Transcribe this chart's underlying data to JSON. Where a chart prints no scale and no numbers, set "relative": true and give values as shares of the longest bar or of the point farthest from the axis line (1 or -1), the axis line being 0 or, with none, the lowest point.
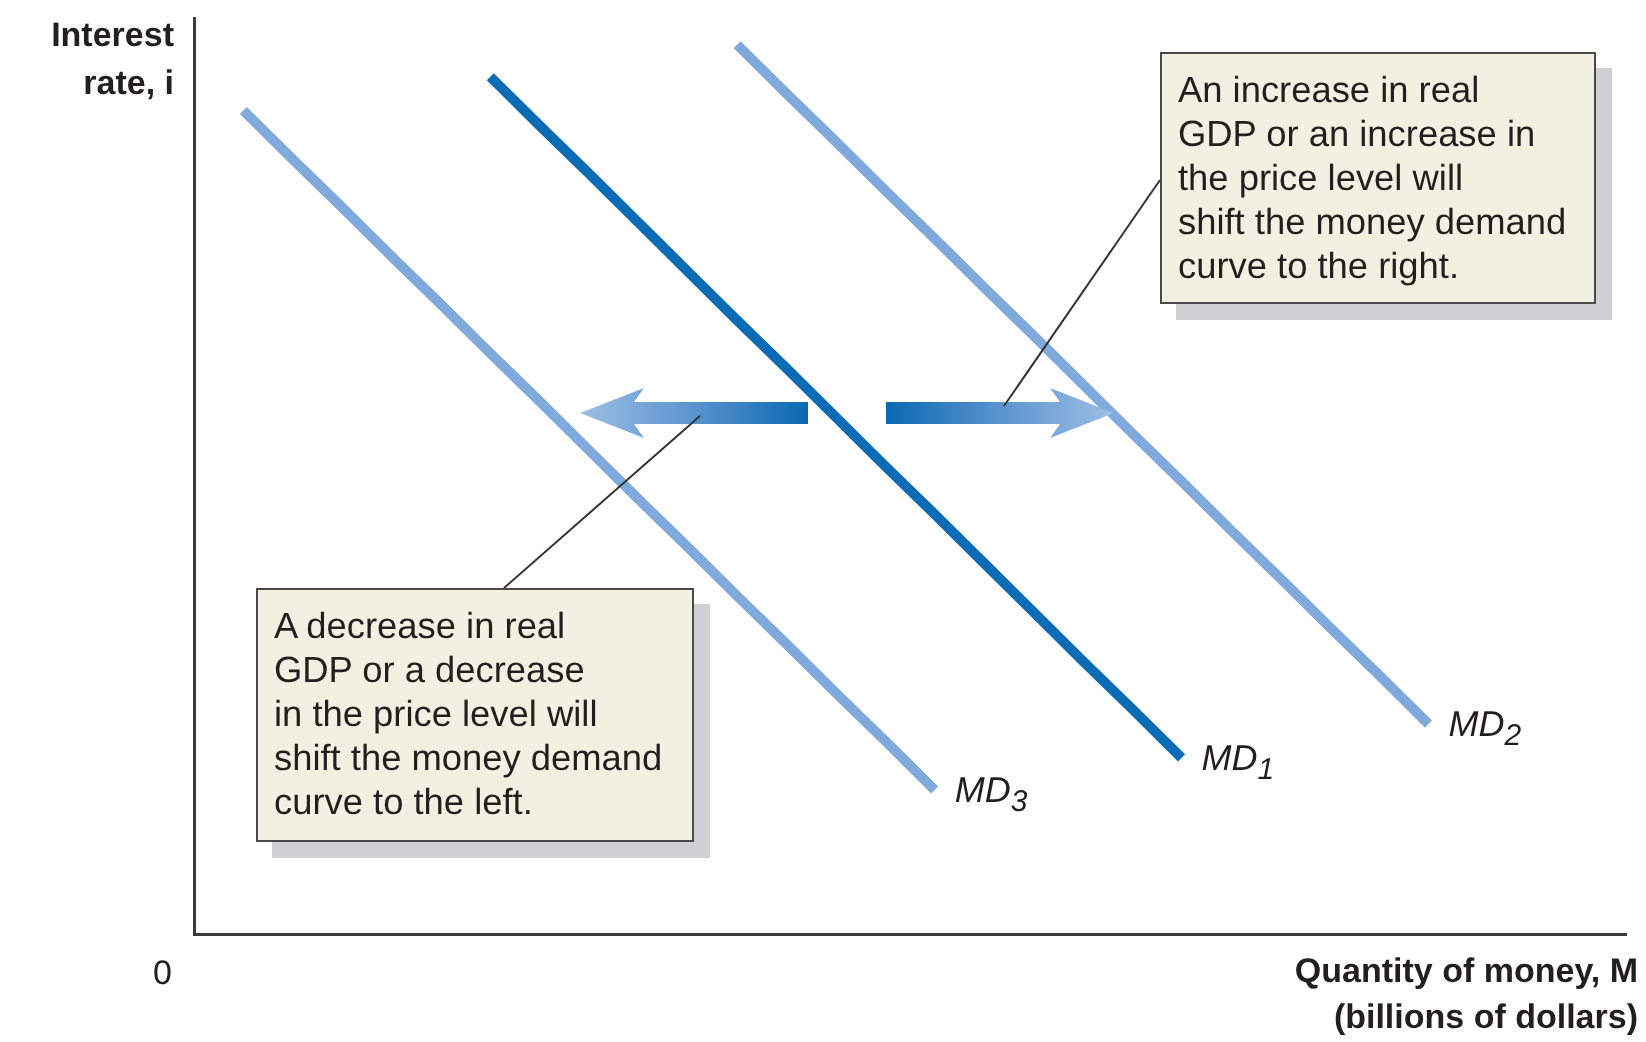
{
  "chart_data": {
    "type": "line",
    "relative": true,
    "marker": "none",
    "xlabel": "Quantity of money, M\n(billions of dollars)",
    "ylabel": "Interest\nrate, i",
    "categories": [
      null,
      null,
      null,
      null,
      null,
      null,
      null,
      null,
      null,
      null,
      null,
      null,
      null,
      null,
      null,
      null,
      null,
      null,
      null,
      null,
      null,
      null,
      null,
      null,
      null,
      null,
      null,
      null,
      null,
      null
    ],
    "series": [
      {
        "name": "MD$_{1}$",
        "color": "#0b6cb5",
        "values": [
          null,
          null,
          null,
          null,
          null,
          null,
          0.964,
          0.909,
          0.855,
          0.8,
          0.745,
          0.69,
          0.636,
          0.581,
          0.526,
          0.472,
          0.417,
          0.362,
          0.307,
          0.253,
          0.198,
          null,
          null,
          null,
          null,
          null,
          null,
          null,
          null,
          null
        ]
      },
      {
        "name": "MD$_{2}$",
        "color": "#80aadb",
        "values": [
          null,
          null,
          null,
          null,
          null,
          null,
          null,
          null,
          null,
          null,
          null,
          1.0,
          0.945,
          0.891,
          0.836,
          0.782,
          0.727,
          0.673,
          0.618,
          0.563,
          0.509,
          0.454,
          0.4,
          0.345,
          0.291,
          0.236,
          null,
          null,
          null,
          null
        ]
      },
      {
        "name": "MD$_{3}$",
        "color": "#80aadb",
        "values": [
          null,
          0.926,
          0.871,
          0.817,
          0.762,
          0.708,
          0.653,
          0.599,
          0.544,
          0.489,
          0.435,
          0.38,
          0.326,
          0.271,
          0.217,
          0.162,
          null,
          null,
          null,
          null,
          null,
          null,
          null,
          null,
          null,
          null,
          null,
          null,
          null,
          null
        ]
      }
    ],
    "annotations": [
      "An increase in real\nGDP or an increase in\nthe price level will\nshift the money demand\ncurve to the right.",
      "A decrease in real\nGDP or a decrease\nin the price level will\nshift the money demand\ncurve to the left.",
      "0"
    ]
  }
}
